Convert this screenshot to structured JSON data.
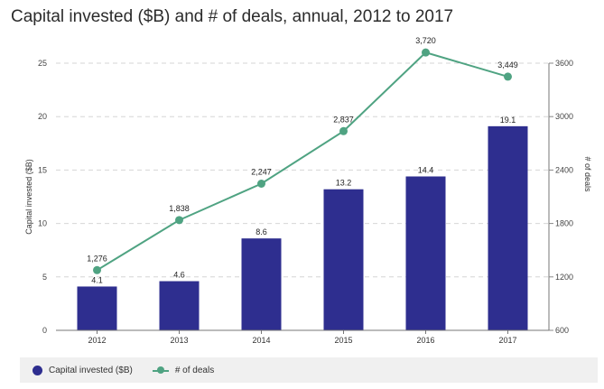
{
  "chart_data": {
    "type": "bar",
    "title": "Capital invested ($B) and # of deals, annual, 2012 to 2017",
    "categories": [
      "2012",
      "2013",
      "2014",
      "2015",
      "2016",
      "2017"
    ],
    "series": [
      {
        "name": "Capital invested ($B)",
        "type": "bar",
        "axis": "left",
        "values": [
          4.1,
          4.6,
          8.6,
          13.2,
          14.4,
          19.1
        ],
        "labels": [
          "4.1",
          "4.6",
          "8.6",
          "13.2",
          "14.4",
          "19.1"
        ],
        "color": "#2e2e8f"
      },
      {
        "name": "# of deals",
        "type": "line",
        "axis": "right",
        "values": [
          1276,
          1838,
          2247,
          2837,
          3720,
          3449
        ],
        "labels": [
          "1,276",
          "1,838",
          "2,247",
          "2,837",
          "3,720",
          "3,449"
        ],
        "color": "#4fa382"
      }
    ],
    "ylabel": "Capital invested ($B)",
    "ylim": [
      0,
      25
    ],
    "yticks": [
      "0",
      "5",
      "10",
      "15",
      "20",
      "25"
    ],
    "y2label": "# of deals",
    "y2lim": [
      600,
      3600
    ],
    "y2ticks": [
      "600",
      "1200",
      "1800",
      "2400",
      "3000",
      "3600"
    ],
    "grid": true,
    "legend_position": "bottom"
  }
}
